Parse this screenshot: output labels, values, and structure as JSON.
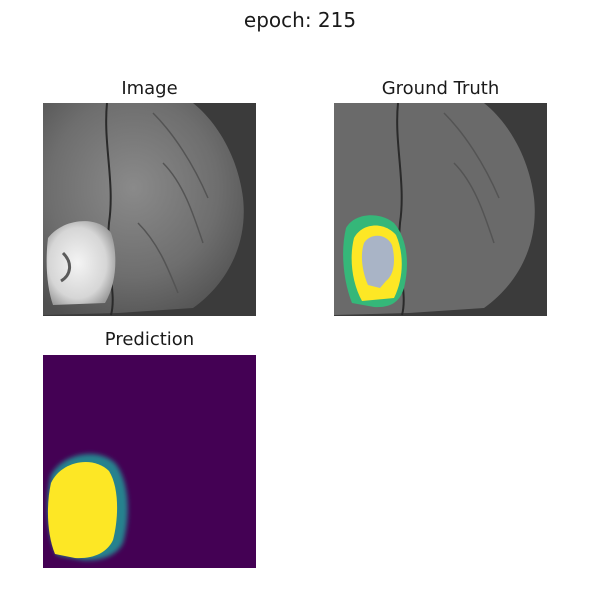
{
  "figure": {
    "suptitle": "epoch: 215",
    "panels": [
      {
        "title": "Image"
      },
      {
        "title": "Ground Truth"
      },
      {
        "title": "Prediction"
      }
    ]
  },
  "colors": {
    "mri_background": "#3b3b3b",
    "prediction_background": "#440154",
    "prediction_fill": "#fde725",
    "label_edema": "#35b779",
    "label_core": "#fde725",
    "label_necrotic": "#a9b4c6"
  }
}
